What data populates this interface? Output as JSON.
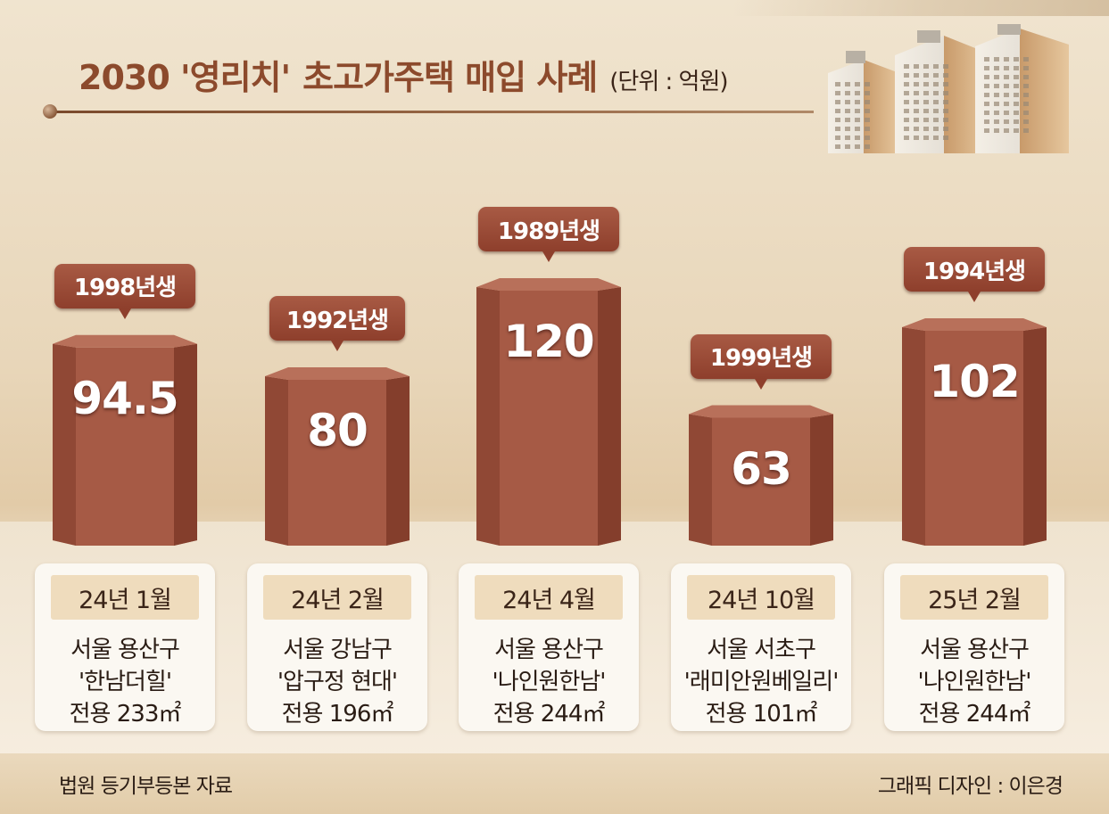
{
  "title": {
    "prefix": "2030 '영리치'",
    "main": "초고가주택 매입 사례",
    "unit": "(단위 : 억원)"
  },
  "chart_data": {
    "type": "bar",
    "categories": [
      "24년 1월",
      "24년 2월",
      "24년 4월",
      "24년 10월",
      "25년 2월"
    ],
    "values": [
      94.5,
      80,
      120,
      63,
      102
    ],
    "value_labels": [
      "94.5",
      "80",
      "120",
      "63",
      "102"
    ],
    "birth_years": [
      "1998년생",
      "1992년생",
      "1989년생",
      "1999년생",
      "1994년생"
    ],
    "locations": [
      "서울 용산구",
      "서울 강남구",
      "서울 용산구",
      "서울 서초구",
      "서울 용산구"
    ],
    "complexes": [
      "'한남더힐'",
      "'압구정 현대'",
      "'나인원한남'",
      "'래미안원베일리'",
      "'나인원한남'"
    ],
    "areas": [
      "전용 233㎡",
      "전용 196㎡",
      "전용 244㎡",
      "전용 101㎡",
      "전용 244㎡"
    ]
  },
  "colors": {
    "bar_face": "#a65a45",
    "bar_dark": "#7e3a28",
    "bar_top": "#b8705a",
    "tag": "#9a4a36",
    "title_accent": "#8c4a2c"
  },
  "icons": [
    "apartment-buildings-illustration"
  ],
  "footer": {
    "source": "법원 등기부등본 자료",
    "credit": "그래픽 디자인 : 이은경"
  }
}
